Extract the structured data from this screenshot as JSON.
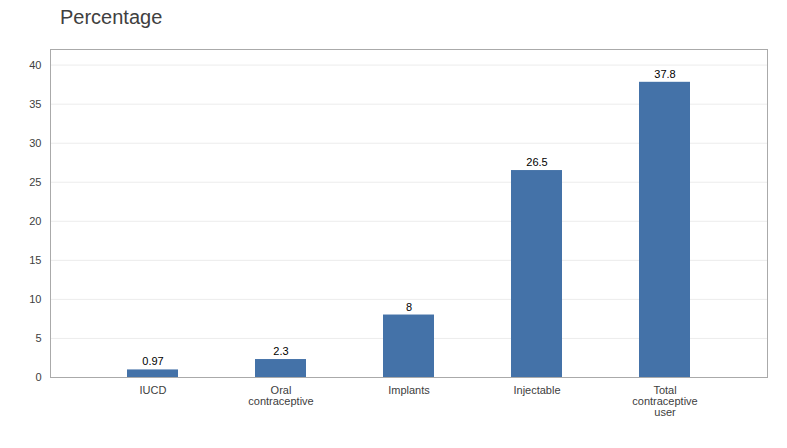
{
  "chart_data": {
    "type": "bar",
    "title": "Percentage",
    "categories": [
      "IUCD",
      "Oral\ncontraceptive",
      "Implants",
      "Injectable",
      "Total\ncontraceptive\nuser"
    ],
    "values": [
      0.97,
      2.3,
      8,
      26.5,
      37.8
    ],
    "color": "#4472A8",
    "ylim": [
      0,
      42
    ],
    "yticks": [
      0,
      5,
      10,
      15,
      20,
      25,
      30,
      35,
      40
    ],
    "grid": true,
    "data_labels": true
  }
}
